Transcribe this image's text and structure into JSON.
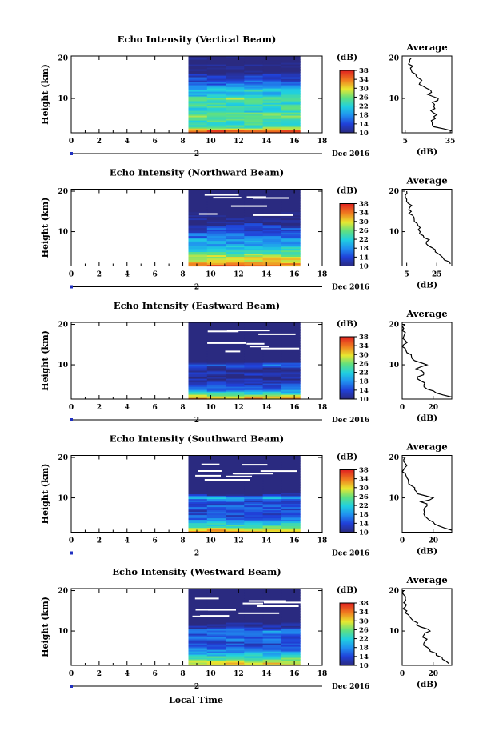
{
  "figure": {
    "xlabel": "Local Time",
    "date_label": "Dec 2016",
    "day_label": "2",
    "colorbar_unit": "(dB)",
    "colorbar_ticks": [
      "10",
      "14",
      "18",
      "22",
      "26",
      "30",
      "34",
      "38"
    ],
    "average_title": "Average",
    "average_xlabel": "(dB)",
    "height_label": "Height (km)"
  },
  "chart_data": [
    {
      "type": "heatmap",
      "title": "Echo Intensity (Vertical Beam)",
      "ylabel": "Height (km)",
      "xlabel": "Local Time",
      "x_ticks": [
        "0",
        "2",
        "4",
        "6",
        "8",
        "10",
        "12",
        "14",
        "16",
        "18"
      ],
      "xlim": [
        0,
        18
      ],
      "y_ticks": [
        "10",
        "20"
      ],
      "ylim": [
        1.5,
        20.5
      ],
      "data_x_range": [
        8.4,
        16.4
      ],
      "colorbar": {
        "label": "(dB)",
        "ticks": [
          10,
          14,
          18,
          22,
          26,
          30,
          34,
          38
        ],
        "range": [
          10,
          38
        ]
      },
      "profile_heights": [
        2,
        3,
        4,
        5,
        6,
        7,
        8,
        9,
        10,
        11,
        12,
        13,
        14,
        15,
        16,
        17,
        18,
        19,
        20
      ],
      "profile_db": [
        36,
        24,
        23,
        25,
        26,
        22,
        24,
        23,
        27,
        20,
        22,
        17,
        15,
        14,
        12,
        9,
        10,
        8,
        9
      ],
      "average": {
        "title": "Average",
        "xlabel": "(dB)",
        "x_ticks": [
          "5",
          "35"
        ],
        "xlim": [
          3,
          36
        ],
        "y_ticks": [
          "10",
          "20"
        ]
      }
    },
    {
      "type": "heatmap",
      "title": "Echo Intensity (Northward Beam)",
      "ylabel": "Height (km)",
      "xlabel": "Local Time",
      "x_ticks": [
        "0",
        "2",
        "4",
        "6",
        "8",
        "10",
        "12",
        "14",
        "16",
        "18"
      ],
      "xlim": [
        0,
        18
      ],
      "y_ticks": [
        "10",
        "20"
      ],
      "ylim": [
        1.5,
        20.5
      ],
      "data_x_range": [
        8.4,
        16.4
      ],
      "colorbar": {
        "label": "(dB)",
        "ticks": [
          10,
          14,
          18,
          22,
          26,
          30,
          34,
          38
        ],
        "range": [
          10,
          38
        ]
      },
      "profile_heights": [
        2,
        3,
        4,
        5,
        6,
        7,
        8,
        9,
        10,
        11,
        12,
        13,
        14,
        15,
        16,
        17,
        18,
        19,
        20
      ],
      "profile_db": [
        34,
        30,
        28,
        24,
        22,
        18,
        20,
        16,
        14,
        14,
        12,
        10,
        9,
        8,
        7,
        6,
        5,
        4,
        5
      ],
      "average": {
        "title": "Average",
        "xlabel": "(dB)",
        "x_ticks": [
          "5",
          "25"
        ],
        "xlim": [
          2,
          35
        ],
        "y_ticks": [
          "10",
          "20"
        ]
      }
    },
    {
      "type": "heatmap",
      "title": "Echo Intensity (Eastward Beam)",
      "ylabel": "Height (km)",
      "xlabel": "Local Time",
      "x_ticks": [
        "0",
        "2",
        "4",
        "6",
        "8",
        "10",
        "12",
        "14",
        "16",
        "18"
      ],
      "xlim": [
        0,
        18
      ],
      "y_ticks": [
        "10",
        "20"
      ],
      "ylim": [
        1.5,
        20.5
      ],
      "data_x_range": [
        8.4,
        16.4
      ],
      "colorbar": {
        "label": "(dB)",
        "ticks": [
          10,
          14,
          18,
          22,
          26,
          30,
          34,
          38
        ],
        "range": [
          10,
          38
        ]
      },
      "profile_heights": [
        2,
        3,
        4,
        5,
        6,
        7,
        8,
        9,
        10,
        11,
        12,
        13,
        14,
        15,
        16,
        17,
        18,
        19,
        20
      ],
      "profile_db": [
        32,
        22,
        16,
        14,
        12,
        10,
        14,
        9,
        16,
        8,
        6,
        3,
        2,
        1,
        2,
        1,
        2,
        1,
        2
      ],
      "average": {
        "title": "Average",
        "xlabel": "(dB)",
        "x_ticks": [
          "0",
          "20"
        ],
        "xlim": [
          0,
          32
        ],
        "y_ticks": [
          "10",
          "20"
        ]
      }
    },
    {
      "type": "heatmap",
      "title": "Echo Intensity (Southward Beam)",
      "ylabel": "Height (km)",
      "xlabel": "Local Time",
      "x_ticks": [
        "0",
        "2",
        "4",
        "6",
        "8",
        "10",
        "12",
        "14",
        "16",
        "18"
      ],
      "xlim": [
        0,
        18
      ],
      "y_ticks": [
        "10",
        "20"
      ],
      "ylim": [
        1.5,
        20.5
      ],
      "data_x_range": [
        8.4,
        16.4
      ],
      "colorbar": {
        "label": "(dB)",
        "ticks": [
          10,
          14,
          18,
          22,
          26,
          30,
          34,
          38
        ],
        "range": [
          10,
          38
        ]
      },
      "profile_heights": [
        2,
        3,
        4,
        5,
        6,
        7,
        8,
        9,
        10,
        11,
        12,
        13,
        14,
        15,
        16,
        17,
        18,
        19,
        20
      ],
      "profile_db": [
        32,
        24,
        20,
        16,
        14,
        14,
        16,
        12,
        20,
        10,
        8,
        6,
        4,
        3,
        2,
        1,
        3,
        1,
        2
      ],
      "average": {
        "title": "Average",
        "xlabel": "(dB)",
        "x_ticks": [
          "0",
          "20"
        ],
        "xlim": [
          0,
          32
        ],
        "y_ticks": [
          "10",
          "20"
        ]
      }
    },
    {
      "type": "heatmap",
      "title": "Echo Intensity (Westward Beam)",
      "ylabel": "Height (km)",
      "xlabel": "Local Time",
      "x_ticks": [
        "0",
        "2",
        "4",
        "6",
        "8",
        "10",
        "12",
        "14",
        "16",
        "18"
      ],
      "xlim": [
        0,
        18
      ],
      "y_ticks": [
        "10",
        "20"
      ],
      "ylim": [
        1.5,
        20.5
      ],
      "data_x_range": [
        8.4,
        16.4
      ],
      "colorbar": {
        "label": "(dB)",
        "ticks": [
          10,
          14,
          18,
          22,
          26,
          30,
          34,
          38
        ],
        "range": [
          10,
          38
        ]
      },
      "profile_heights": [
        2,
        3,
        4,
        5,
        6,
        7,
        8,
        9,
        10,
        11,
        12,
        13,
        14,
        15,
        16,
        17,
        18,
        19,
        20
      ],
      "profile_db": [
        30,
        26,
        22,
        18,
        16,
        14,
        16,
        14,
        18,
        12,
        10,
        6,
        4,
        3,
        2,
        1,
        2,
        1,
        1
      ],
      "average": {
        "title": "Average",
        "xlabel": "(dB)",
        "x_ticks": [
          "0",
          "20"
        ],
        "xlim": [
          0,
          32
        ],
        "y_ticks": [
          "10",
          "20"
        ]
      }
    }
  ]
}
